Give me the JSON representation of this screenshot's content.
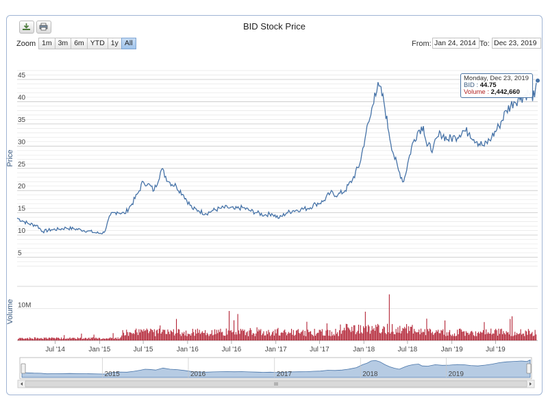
{
  "toolbar": {
    "download_icon": "download-icon",
    "print_icon": "print-icon"
  },
  "title": "BID Stock Price",
  "zoom": {
    "label": "Zoom",
    "buttons": [
      "1m",
      "3m",
      "6m",
      "YTD",
      "1y",
      "All"
    ],
    "active": "All"
  },
  "range": {
    "from_label": "From:",
    "from_value": "Jan 24, 2014",
    "to_label": "To:",
    "to_value": "Dec 23, 2019"
  },
  "tooltip": {
    "date": "Monday, Dec 23, 2019",
    "price_label": "BID",
    "price_value": "44.75",
    "volume_label": "Volume",
    "volume_value": "2,442,660"
  },
  "chart_data": {
    "type": "line",
    "title": "BID Stock Price",
    "price": {
      "ylabel": "Price",
      "yticks": [
        5,
        10,
        15,
        20,
        25,
        30,
        35,
        40,
        45
      ],
      "ylim": [
        2,
        47
      ],
      "series": [
        {
          "name": "BID",
          "x": [
            "2014-01-24",
            "2014-02-15",
            "2014-03-15",
            "2014-04-15",
            "2014-05-10",
            "2014-06-15",
            "2014-07-15",
            "2014-08-15",
            "2014-09-15",
            "2014-10-15",
            "2014-11-15",
            "2014-12-15",
            "2015-01-05",
            "2015-01-20",
            "2015-02-15",
            "2015-03-15",
            "2015-04-15",
            "2015-05-15",
            "2015-06-10",
            "2015-07-01",
            "2015-07-20",
            "2015-08-15",
            "2015-09-15",
            "2015-10-15",
            "2015-11-15",
            "2015-12-15",
            "2016-01-20",
            "2016-02-15",
            "2016-03-15",
            "2016-04-15",
            "2016-05-15",
            "2016-06-15",
            "2016-07-15",
            "2016-08-15",
            "2016-09-15",
            "2016-10-15",
            "2016-11-15",
            "2016-12-15",
            "2017-01-15",
            "2017-02-15",
            "2017-03-15",
            "2017-04-15",
            "2017-05-15",
            "2017-06-15",
            "2017-07-15",
            "2017-08-15",
            "2017-09-15",
            "2017-10-15",
            "2017-11-15",
            "2017-12-15",
            "2018-01-10",
            "2018-01-30",
            "2018-02-15",
            "2018-03-05",
            "2018-03-25",
            "2018-04-15",
            "2018-05-05",
            "2018-05-25",
            "2018-06-15",
            "2018-07-10",
            "2018-07-25",
            "2018-08-15",
            "2018-09-05",
            "2018-09-20",
            "2018-10-15",
            "2018-11-15",
            "2018-12-15",
            "2019-01-15",
            "2019-02-15",
            "2019-03-15",
            "2019-04-15",
            "2019-05-15",
            "2019-06-15",
            "2019-07-15",
            "2019-08-15",
            "2019-09-15",
            "2019-10-15",
            "2019-11-15",
            "2019-12-10",
            "2019-12-23"
          ],
          "values": [
            13.8,
            13.2,
            12.5,
            12.2,
            10.8,
            11.2,
            11.3,
            11.6,
            11.4,
            11.2,
            10.9,
            10.5,
            10.4,
            10.6,
            14.5,
            15.2,
            14.8,
            17.0,
            19.5,
            22.0,
            21.5,
            20.0,
            24.8,
            22.0,
            21.0,
            19.0,
            16.0,
            15.5,
            14.8,
            15.5,
            16.0,
            16.2,
            15.8,
            16.2,
            15.5,
            15.0,
            14.5,
            14.8,
            13.8,
            15.0,
            15.5,
            15.8,
            16.0,
            17.0,
            17.5,
            19.5,
            19.0,
            20.0,
            22.5,
            26.0,
            33.0,
            37.0,
            42.0,
            43.5,
            40.0,
            33.0,
            28.0,
            24.5,
            22.0,
            28.0,
            31.0,
            33.5,
            34.5,
            30.0,
            29.5,
            33.0,
            31.5,
            32.0,
            33.5,
            33.0,
            31.0,
            30.0,
            32.0,
            34.5,
            38.0,
            40.0,
            41.0,
            42.0,
            41.0,
            44.75
          ]
        }
      ]
    },
    "volume": {
      "ylabel": "Volume",
      "yticks_labels": [
        "10M"
      ],
      "ytick_values": [
        10000000
      ],
      "ylim": [
        0,
        17000000
      ],
      "description": "daily volume bars; low activity in 2014, higher from 2015, peaks in 2017"
    },
    "xticks": [
      "Jul '14",
      "Jan '15",
      "Jul '15",
      "Jan '16",
      "Jul '16",
      "Jan '17",
      "Jul '17",
      "Jan '18",
      "Jul '18",
      "Jan '19",
      "Jul '19"
    ],
    "xtick_dates": [
      "2014-07-01",
      "2015-01-01",
      "2015-07-01",
      "2016-01-01",
      "2016-07-01",
      "2017-01-01",
      "2017-07-01",
      "2018-01-01",
      "2018-07-01",
      "2019-01-01",
      "2019-07-01"
    ],
    "navigator": {
      "labels": [
        "2015",
        "2016",
        "2017",
        "2018",
        "2019"
      ],
      "label_dates": [
        "2015-01-01",
        "2016-01-01",
        "2017-01-01",
        "2018-01-01",
        "2019-01-01"
      ]
    },
    "grid": true,
    "legend": "none"
  }
}
